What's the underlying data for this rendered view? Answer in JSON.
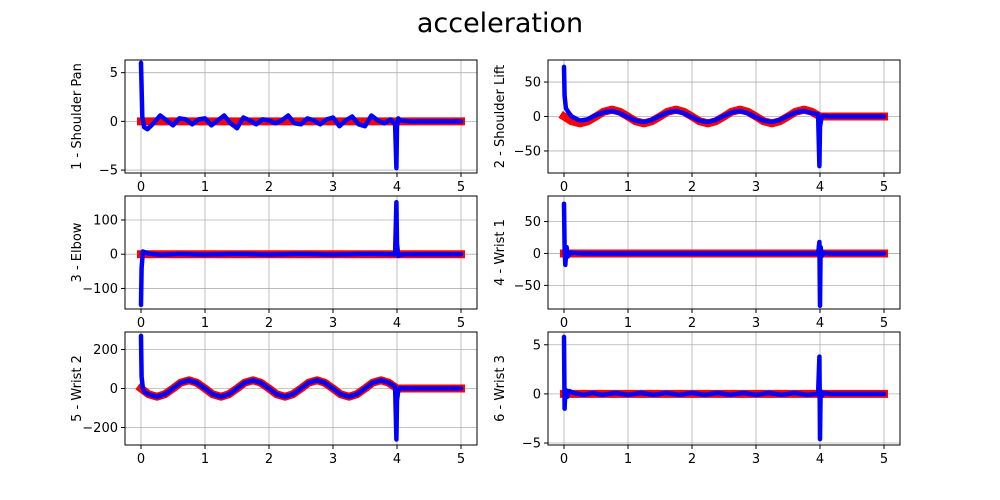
{
  "title": "acceleration",
  "chart_data": [
    {
      "type": "line",
      "ylabel": "1 - Shoulder Pan",
      "xlim": [
        -0.25,
        5.25
      ],
      "ylim": [
        -5.3,
        6.3
      ],
      "xticks": [
        0,
        1,
        2,
        3,
        4,
        5
      ],
      "yticks": [
        -5,
        0,
        5
      ],
      "series": [
        {
          "color": "#ff0000",
          "width": 8,
          "x": [
            0,
            0.03,
            5.0
          ],
          "y": [
            0,
            0,
            0
          ]
        },
        {
          "color": "#0000ff",
          "width": 4.5,
          "x": [
            0,
            0.02,
            0.05,
            0.1,
            0.18,
            0.3,
            0.4,
            0.5,
            0.6,
            0.7,
            0.8,
            0.9,
            1.0,
            1.1,
            1.2,
            1.3,
            1.4,
            1.5,
            1.6,
            1.7,
            1.8,
            1.9,
            2.0,
            2.1,
            2.2,
            2.3,
            2.4,
            2.5,
            2.6,
            2.7,
            2.8,
            2.9,
            3.0,
            3.1,
            3.2,
            3.3,
            3.4,
            3.5,
            3.6,
            3.7,
            3.8,
            3.9,
            3.97,
            3.99,
            4.0,
            4.02,
            4.05,
            4.2,
            5.0
          ],
          "y": [
            6.0,
            0.5,
            -0.6,
            -0.8,
            -0.3,
            0.6,
            0.1,
            -0.4,
            0.3,
            0.2,
            -0.3,
            0.2,
            0.3,
            -0.4,
            0.1,
            0.6,
            -0.2,
            -0.7,
            0.4,
            0.1,
            -0.3,
            0.2,
            0.1,
            -0.2,
            0.1,
            0.6,
            -0.2,
            -0.3,
            0.3,
            0.1,
            -0.3,
            0.2,
            0.4,
            -0.5,
            0.1,
            0.5,
            -0.3,
            -0.5,
            0.6,
            0.1,
            -0.2,
            0.2,
            -0.3,
            -4.8,
            -0.5,
            0.3,
            0.1,
            0.0,
            0.0
          ]
        }
      ]
    },
    {
      "type": "line",
      "ylabel": "2 - Shoulder Lift",
      "xlim": [
        -0.25,
        5.25
      ],
      "ylim": [
        -82,
        82
      ],
      "xticks": [
        0,
        1,
        2,
        3,
        4,
        5
      ],
      "yticks": [
        -50,
        0,
        50
      ],
      "series": [
        {
          "color": "#ff0000",
          "width": 8,
          "x": [
            0,
            0.12,
            0.25,
            0.37,
            0.5,
            0.62,
            0.75,
            0.87,
            1.0,
            1.12,
            1.25,
            1.37,
            1.5,
            1.62,
            1.75,
            1.87,
            2.0,
            2.12,
            2.25,
            2.37,
            2.5,
            2.62,
            2.75,
            2.87,
            3.0,
            3.12,
            3.25,
            3.37,
            3.5,
            3.62,
            3.75,
            3.87,
            4.0,
            4.01,
            5.0
          ],
          "y": [
            0,
            -7,
            -10,
            -7,
            0,
            7,
            10,
            7,
            0,
            -7,
            -10,
            -7,
            0,
            7,
            10,
            7,
            0,
            -7,
            -10,
            -7,
            0,
            7,
            10,
            7,
            0,
            -7,
            -10,
            -7,
            0,
            7,
            10,
            7,
            0,
            0,
            0
          ]
        },
        {
          "color": "#0000ff",
          "width": 4.5,
          "x": [
            0,
            0.01,
            0.03,
            0.07,
            0.12,
            0.25,
            0.37,
            0.5,
            0.62,
            0.75,
            0.87,
            1.0,
            1.12,
            1.25,
            1.37,
            1.5,
            1.62,
            1.75,
            1.87,
            2.0,
            2.12,
            2.25,
            2.37,
            2.5,
            2.62,
            2.75,
            2.87,
            3.0,
            3.12,
            3.25,
            3.37,
            3.5,
            3.62,
            3.75,
            3.87,
            3.97,
            3.99,
            4.0,
            4.02,
            4.05,
            4.15,
            5.0
          ],
          "y": [
            72,
            30,
            12,
            6,
            0,
            -6,
            -4,
            2,
            6,
            8,
            5,
            -1,
            -6,
            -8,
            -5,
            1,
            6,
            8,
            5,
            -1,
            -6,
            -8,
            -5,
            1,
            6,
            8,
            5,
            -1,
            -6,
            -8,
            -5,
            1,
            6,
            8,
            5,
            3,
            -72,
            -15,
            -3,
            1,
            0,
            0
          ]
        }
      ]
    },
    {
      "type": "line",
      "ylabel": "3 - Elbow",
      "xlim": [
        -0.25,
        5.25
      ],
      "ylim": [
        -160,
        170
      ],
      "xticks": [
        0,
        1,
        2,
        3,
        4,
        5
      ],
      "yticks": [
        -100,
        0,
        100
      ],
      "series": [
        {
          "color": "#ff0000",
          "width": 8,
          "x": [
            0,
            5.0
          ],
          "y": [
            0,
            0
          ]
        },
        {
          "color": "#0000ff",
          "width": 4.5,
          "x": [
            0,
            0.01,
            0.03,
            0.06,
            0.12,
            0.3,
            0.6,
            1.0,
            1.5,
            2.0,
            2.5,
            3.0,
            3.5,
            3.97,
            3.99,
            4.0,
            4.02,
            4.05,
            4.15,
            5.0
          ],
          "y": [
            -148,
            -40,
            8,
            6,
            2,
            -2,
            1,
            -1,
            1,
            -1,
            1,
            -1,
            1,
            0,
            152,
            30,
            -5,
            -2,
            0,
            0
          ]
        }
      ]
    },
    {
      "type": "line",
      "ylabel": "4 - Wrist 1",
      "xlim": [
        -0.25,
        5.25
      ],
      "ylim": [
        -87,
        90
      ],
      "xticks": [
        0,
        1,
        2,
        3,
        4,
        5
      ],
      "yticks": [
        -50,
        0,
        50
      ],
      "series": [
        {
          "color": "#ff0000",
          "width": 8,
          "x": [
            0,
            5.0
          ],
          "y": [
            0,
            0
          ]
        },
        {
          "color": "#0000ff",
          "width": 4.5,
          "x": [
            0,
            0.01,
            0.02,
            0.04,
            0.06,
            0.1,
            0.3,
            1.0,
            2.0,
            3.0,
            3.97,
            3.99,
            4.0,
            4.01,
            4.03,
            4.06,
            4.15,
            5.0
          ],
          "y": [
            78,
            10,
            -18,
            10,
            -5,
            1,
            0,
            0,
            0,
            0,
            0,
            18,
            -82,
            10,
            -4,
            1,
            0,
            0
          ]
        }
      ]
    },
    {
      "type": "line",
      "ylabel": "5 - Wrist 2",
      "xlim": [
        -0.25,
        5.25
      ],
      "ylim": [
        -290,
        290
      ],
      "xticks": [
        0,
        1,
        2,
        3,
        4,
        5
      ],
      "yticks": [
        -200,
        0,
        200
      ],
      "series": [
        {
          "color": "#ff0000",
          "width": 8,
          "x": [
            0,
            0.12,
            0.25,
            0.37,
            0.5,
            0.62,
            0.75,
            0.87,
            1.0,
            1.12,
            1.25,
            1.37,
            1.5,
            1.62,
            1.75,
            1.87,
            2.0,
            2.12,
            2.25,
            2.37,
            2.5,
            2.62,
            2.75,
            2.87,
            3.0,
            3.12,
            3.25,
            3.37,
            3.5,
            3.62,
            3.75,
            3.87,
            4.0,
            4.01,
            5.0
          ],
          "y": [
            0,
            -30,
            -42,
            -30,
            0,
            30,
            42,
            30,
            0,
            -30,
            -42,
            -30,
            0,
            30,
            42,
            30,
            0,
            -30,
            -42,
            -30,
            0,
            30,
            42,
            30,
            0,
            -30,
            -42,
            -30,
            0,
            30,
            42,
            30,
            0,
            0,
            0
          ]
        },
        {
          "color": "#0000ff",
          "width": 4.5,
          "x": [
            0,
            0.01,
            0.03,
            0.06,
            0.12,
            0.25,
            0.37,
            0.5,
            0.62,
            0.75,
            0.87,
            1.0,
            1.12,
            1.25,
            1.37,
            1.5,
            1.62,
            1.75,
            1.87,
            2.0,
            2.12,
            2.25,
            2.37,
            2.5,
            2.62,
            2.75,
            2.87,
            3.0,
            3.12,
            3.25,
            3.37,
            3.5,
            3.62,
            3.75,
            3.87,
            3.97,
            3.99,
            4.0,
            4.02,
            4.05,
            4.15,
            5.0
          ],
          "y": [
            270,
            60,
            0,
            -20,
            -30,
            -42,
            -30,
            0,
            30,
            42,
            30,
            0,
            -30,
            -42,
            -30,
            0,
            30,
            42,
            30,
            0,
            -30,
            -42,
            -30,
            0,
            30,
            42,
            30,
            0,
            -30,
            -42,
            -30,
            0,
            30,
            42,
            30,
            10,
            -262,
            -60,
            -10,
            2,
            0,
            0
          ]
        }
      ]
    },
    {
      "type": "line",
      "ylabel": "6 - Wrist 3",
      "xlim": [
        -0.25,
        5.25
      ],
      "ylim": [
        -5.2,
        6.3
      ],
      "xticks": [
        0,
        1,
        2,
        3,
        4,
        5
      ],
      "yticks": [
        -5,
        0,
        5
      ],
      "series": [
        {
          "color": "#ff0000",
          "width": 8,
          "x": [
            0,
            5.0
          ],
          "y": [
            0,
            0
          ]
        },
        {
          "color": "#0000ff",
          "width": 4.5,
          "x": [
            0,
            0.01,
            0.02,
            0.03,
            0.05,
            0.08,
            0.15,
            0.3,
            0.45,
            0.6,
            0.8,
            1.0,
            1.2,
            1.4,
            1.6,
            1.8,
            2.0,
            2.2,
            2.4,
            2.6,
            2.8,
            3.0,
            3.2,
            3.4,
            3.6,
            3.8,
            3.97,
            3.99,
            4.0,
            4.01,
            4.03,
            4.06,
            4.15,
            5.0
          ],
          "y": [
            5.8,
            -1.5,
            0.3,
            0.4,
            -0.3,
            0.3,
            0.1,
            -0.1,
            0.1,
            -0.1,
            0.1,
            -0.1,
            0.1,
            -0.1,
            0.1,
            -0.1,
            0.1,
            -0.1,
            0.1,
            -0.1,
            0.1,
            -0.1,
            0.1,
            -0.1,
            0.1,
            -0.1,
            0.0,
            3.8,
            -4.6,
            0.3,
            -0.2,
            0.1,
            0.0,
            0.0
          ]
        }
      ]
    }
  ]
}
